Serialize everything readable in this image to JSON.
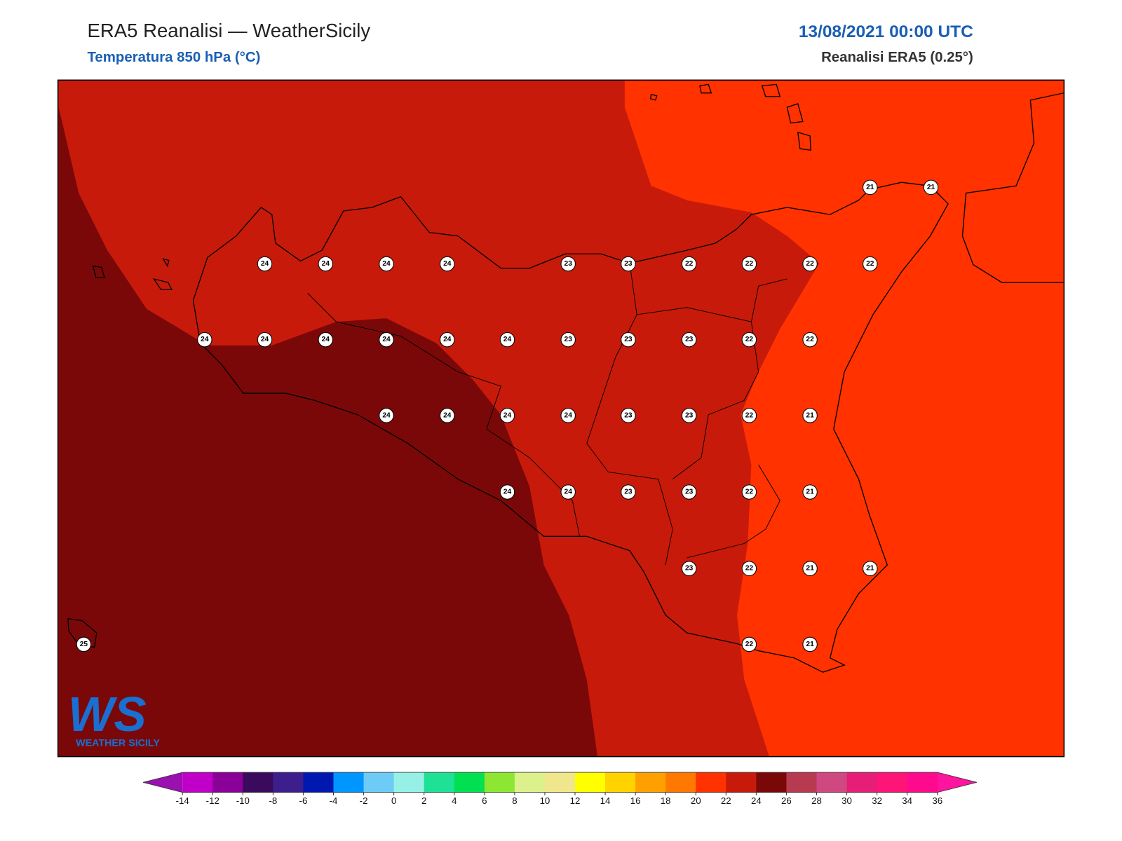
{
  "header": {
    "title": "ERA5 Reanalisi — WeatherSicily",
    "subtitle": "Temperatura 850 hPa (°C)",
    "date": "13/08/2021 00:00 UTC",
    "source": "Reanalisi ERA5 (0.25°)"
  },
  "stations": [
    21,
    21,
    24,
    24,
    24,
    24,
    23,
    23,
    22,
    22,
    22,
    22,
    24,
    24,
    24,
    24,
    24,
    24,
    23,
    23,
    23,
    22,
    22,
    24,
    24,
    24,
    24,
    23,
    23,
    22,
    21,
    24,
    24,
    23,
    23,
    22,
    21,
    23,
    22,
    21,
    21,
    25,
    22,
    21
  ],
  "colorbar": {
    "ticks": [
      -14,
      -12,
      -10,
      -8,
      -6,
      -4,
      -2,
      0,
      2,
      4,
      6,
      8,
      10,
      12,
      14,
      16,
      18,
      20,
      22,
      24,
      26,
      28,
      30,
      32,
      34,
      36
    ],
    "colors": [
      "#c000c8",
      "#8b0099",
      "#3a0a5c",
      "#3c1e8c",
      "#0018b0",
      "#0096ff",
      "#6ecbf5",
      "#96f0e6",
      "#1ee196",
      "#00e050",
      "#8ce632",
      "#dcf08c",
      "#f0e68c",
      "#ffff00",
      "#ffd200",
      "#ffa000",
      "#ff7800",
      "#ff3200",
      "#c81a0a",
      "#7a0808",
      "#b83a50",
      "#d04880",
      "#e61e78",
      "#ff1478",
      "#ff0a8c"
    ],
    "under": "#9b10b0",
    "over": "#ff14a0"
  },
  "logo": {
    "mark": "WS",
    "name": "WEATHER SICILY"
  }
}
